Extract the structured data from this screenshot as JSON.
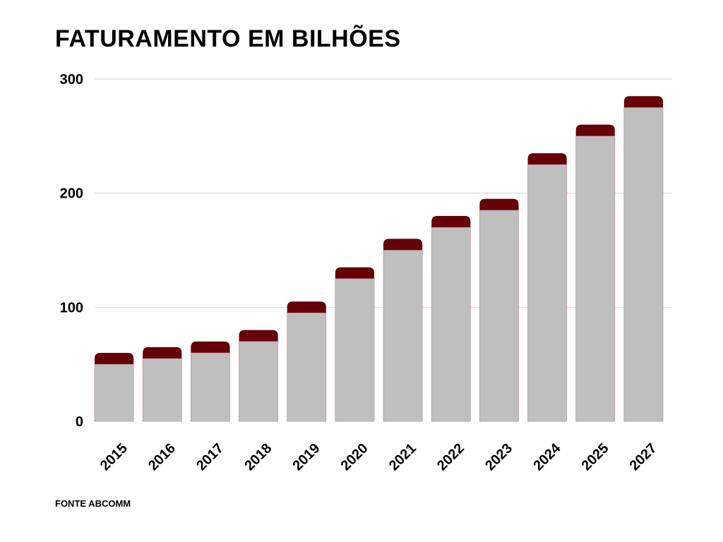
{
  "chart_data": {
    "type": "bar",
    "title": "FATURAMENTO EM BILHÕES",
    "source": "FONTE ABCOMM",
    "categories": [
      "2015",
      "2016",
      "2017",
      "2018",
      "2019",
      "2020",
      "2021",
      "2022",
      "2023",
      "2024",
      "2025",
      "2027"
    ],
    "series": [
      {
        "values": [
          50,
          55,
          60,
          70,
          95,
          125,
          150,
          170,
          185,
          225,
          250,
          275
        ]
      },
      {
        "values": [
          10,
          10,
          10,
          10,
          10,
          10,
          10,
          10,
          10,
          10,
          10,
          10
        ]
      }
    ],
    "stacked": true,
    "ylim": [
      0,
      300
    ],
    "yticks": [
      0,
      100,
      200,
      300
    ],
    "grid": true,
    "colors": {
      "base": "#bfbfbf",
      "top": "#660008",
      "grid": "#d4d4d4"
    }
  }
}
